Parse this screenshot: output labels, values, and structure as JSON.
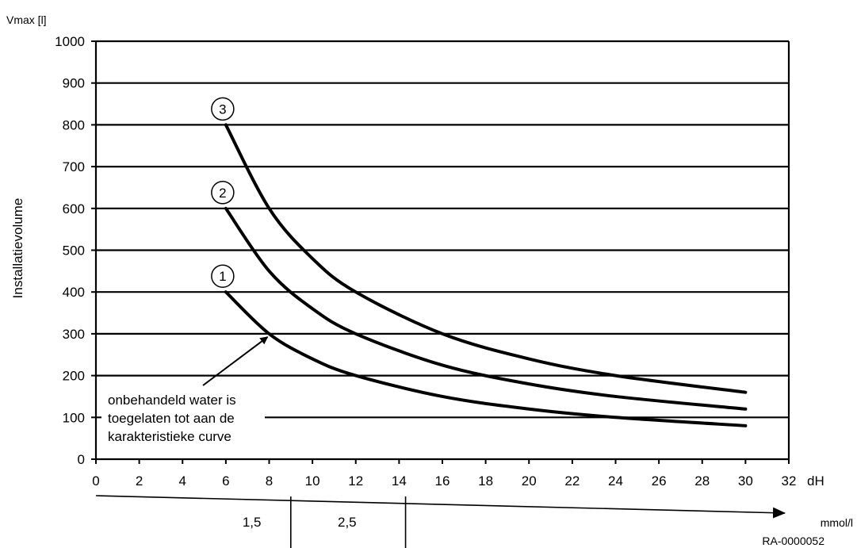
{
  "chart_data": {
    "type": "line",
    "ylabel_top": "Vmax [l]",
    "ylabel": "Installatievolume",
    "x_unit": "dH",
    "ylim": [
      0,
      1000
    ],
    "xlim": [
      0,
      32
    ],
    "yticks": [
      "0",
      "100",
      "200",
      "300",
      "400",
      "500",
      "600",
      "700",
      "800",
      "900",
      "1000"
    ],
    "xticks": [
      "0",
      "2",
      "4",
      "6",
      "8",
      "10",
      "12",
      "14",
      "16",
      "18",
      "20",
      "22",
      "24",
      "26",
      "28",
      "30",
      "32"
    ],
    "grid": true,
    "series": [
      {
        "name": "1",
        "x": [
          6,
          8,
          10,
          12,
          16,
          20,
          24,
          30
        ],
        "y": [
          400,
          300,
          240,
          200,
          150,
          120,
          100,
          80
        ]
      },
      {
        "name": "2",
        "x": [
          6,
          8,
          10,
          12,
          16,
          20,
          24,
          30
        ],
        "y": [
          600,
          450,
          360,
          300,
          225,
          180,
          150,
          120
        ]
      },
      {
        "name": "3",
        "x": [
          6,
          8,
          10,
          12,
          16,
          20,
          24,
          30
        ],
        "y": [
          800,
          600,
          480,
          400,
          300,
          240,
          200,
          160
        ]
      }
    ],
    "annotation": {
      "lines": [
        "onbehandeld water is",
        "toegelaten tot aan de",
        "karakteristieke curve"
      ],
      "arrow_to": {
        "x": 8,
        "y": 300
      }
    },
    "secondary_axis": {
      "unit": "mmol/l",
      "dividers_dH": [
        9,
        14.3
      ],
      "labels": [
        {
          "text": "1,5",
          "dH_center": 7.2
        },
        {
          "text": "2,5",
          "dH_center": 11.6
        }
      ]
    }
  },
  "doc_id": "RA-0000052"
}
